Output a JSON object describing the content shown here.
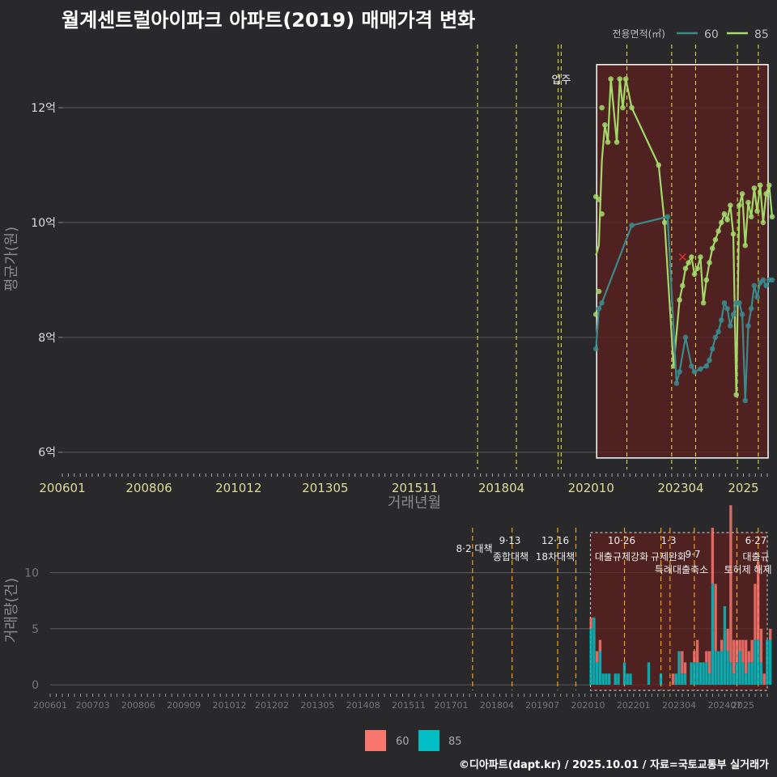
{
  "title": "월계센트럴아이파크 아파트(2019) 매매가격 변화",
  "footer": "©디아파트(dapt.kr) / 2025.10.01 / 자료=국토교통부 실거래가",
  "colors": {
    "background": "#29292b",
    "series_60_line": "#3a8a8c",
    "series_85_line": "#a3d96a",
    "bar_60": "#f8766d",
    "bar_85": "#00bfc4",
    "highlight_fill": "#5c1f1f",
    "event_line": "#e8e84a",
    "event_line_bottom": "#f0a020",
    "grid": "#5a5a5a",
    "text": "#dddddd",
    "axis_title": "#8a8a8a"
  },
  "legend_top": {
    "title": "전용면적(㎡)",
    "items": [
      "60",
      "85"
    ]
  },
  "legend_bottom": {
    "items": [
      "60",
      "85"
    ]
  },
  "chart_data": [
    {
      "type": "line",
      "title": "월계센트럴아이파크 아파트(2019) 매매가격 변화",
      "xlabel": "거래년월",
      "ylabel": "평균가(원)",
      "x_ticks": [
        "200601",
        "200806",
        "201012",
        "201305",
        "201511",
        "201804",
        "202010",
        "202304",
        "2025"
      ],
      "y_ticks": [
        "6억",
        "8억",
        "10억",
        "12억"
      ],
      "ylim": [
        5.7,
        13.1
      ],
      "y_unit": "억",
      "grid": true,
      "legend_position": "top-right",
      "highlight_period": [
        "2020-10",
        "2025-09"
      ],
      "event_lines": [
        "2017-08",
        "2018-09",
        "2019-11",
        "2019-12",
        "2021-10",
        "2023-01",
        "2023-09",
        "2024-11",
        "2025-06"
      ],
      "annotations": [
        {
          "text": "입주",
          "date": "2019-12"
        }
      ],
      "series": [
        {
          "name": "85",
          "points": [
            [
              "2020-10",
              8.4
            ],
            [
              "2020-10",
              10.45
            ],
            [
              "2020-11",
              10.4
            ],
            [
              "2020-11",
              8.8
            ],
            [
              "2020-12",
              12.0
            ],
            [
              "2020-12",
              10.15
            ],
            [
              "2021-01",
              11.7
            ],
            [
              "2021-02",
              11.4
            ],
            [
              "2021-03",
              12.5
            ],
            [
              "2021-05",
              11.4
            ],
            [
              "2021-06",
              12.5
            ],
            [
              "2021-07",
              12.0
            ],
            [
              "2021-08",
              12.5
            ],
            [
              "2021-10",
              12.0
            ],
            [
              "2022-07",
              11.0
            ],
            [
              "2022-09",
              10.0
            ],
            [
              "2022-12",
              7.5
            ],
            [
              "2023-02",
              8.65
            ],
            [
              "2023-03",
              8.9
            ],
            [
              "2023-04",
              9.2
            ],
            [
              "2023-05",
              9.3
            ],
            [
              "2023-06",
              9.4
            ],
            [
              "2023-07",
              9.1
            ],
            [
              "2023-08",
              9.2
            ],
            [
              "2023-09",
              9.4
            ],
            [
              "2023-10",
              8.6
            ],
            [
              "2023-11",
              9.0
            ],
            [
              "2023-12",
              9.3
            ],
            [
              "2024-01",
              9.55
            ],
            [
              "2024-02",
              9.7
            ],
            [
              "2024-03",
              9.85
            ],
            [
              "2024-04",
              10.0
            ],
            [
              "2024-05",
              10.15
            ],
            [
              "2024-06",
              10.05
            ],
            [
              "2024-07",
              10.3
            ],
            [
              "2024-08",
              9.8
            ],
            [
              "2024-09",
              7.0
            ],
            [
              "2024-10",
              10.3
            ],
            [
              "2024-11",
              10.5
            ],
            [
              "2024-12",
              9.6
            ],
            [
              "2025-01",
              10.35
            ],
            [
              "2025-02",
              10.1
            ],
            [
              "2025-03",
              10.6
            ],
            [
              "2025-04",
              10.2
            ],
            [
              "2025-05",
              10.65
            ],
            [
              "2025-06",
              10.0
            ],
            [
              "2025-07",
              10.5
            ],
            [
              "2025-08",
              10.65
            ],
            [
              "2025-09",
              10.1
            ]
          ]
        },
        {
          "name": "60",
          "points": [
            [
              "2020-10",
              7.8
            ],
            [
              "2020-11",
              8.5
            ],
            [
              "2020-12",
              8.6
            ],
            [
              "2021-10",
              9.95
            ],
            [
              "2022-10",
              10.1
            ],
            [
              "2023-01",
              7.2
            ],
            [
              "2023-02",
              7.4
            ],
            [
              "2023-04",
              8.0
            ],
            [
              "2023-06",
              7.5
            ],
            [
              "2023-07",
              7.4
            ],
            [
              "2023-09",
              7.45
            ],
            [
              "2023-11",
              7.5
            ],
            [
              "2023-12",
              7.6
            ],
            [
              "2024-01",
              7.8
            ],
            [
              "2024-02",
              8.0
            ],
            [
              "2024-03",
              8.1
            ],
            [
              "2024-04",
              8.3
            ],
            [
              "2024-05",
              8.6
            ],
            [
              "2024-06",
              8.5
            ],
            [
              "2024-07",
              8.2
            ],
            [
              "2024-08",
              8.4
            ],
            [
              "2024-09",
              8.6
            ],
            [
              "2024-10",
              8.6
            ],
            [
              "2024-11",
              8.4
            ],
            [
              "2024-12",
              6.9
            ],
            [
              "2025-01",
              8.2
            ],
            [
              "2025-02",
              8.5
            ],
            [
              "2025-03",
              8.9
            ],
            [
              "2025-04",
              8.7
            ],
            [
              "2025-05",
              8.95
            ],
            [
              "2025-06",
              9.0
            ],
            [
              "2025-07",
              8.9
            ],
            [
              "2025-08",
              9.0
            ],
            [
              "2025-09",
              9.0
            ]
          ]
        }
      ],
      "markers": [
        {
          "label": "x",
          "date": "2023-03",
          "value": 9.4
        }
      ]
    },
    {
      "type": "bar",
      "xlabel": "",
      "ylabel": "거래량(건)",
      "x_ticks": [
        "200601",
        "200703",
        "200806",
        "200909",
        "201012",
        "201202",
        "201305",
        "201408",
        "201511",
        "201701",
        "201804",
        "201907",
        "202010",
        "202201",
        "202304",
        "202407",
        "2025"
      ],
      "y_ticks": [
        "0",
        "5",
        "10"
      ],
      "ylim": [
        -0.5,
        14
      ],
      "grid": true,
      "legend_position": "bottom",
      "highlight_period": [
        "2020-10",
        "2025-09"
      ],
      "event_lines": [
        "2017-08",
        "2018-09",
        "2019-12",
        "2020-06",
        "2021-10",
        "2022-10",
        "2023-01",
        "2023-09",
        "2024-11",
        "2025-06"
      ],
      "annotations": [
        {
          "text": "8·2 대책",
          "date": "2017-08"
        },
        {
          "text": "9·13",
          "date": "2018-09"
        },
        {
          "text": "종합대책",
          "date": "2018-09"
        },
        {
          "text": "12·16",
          "date": "2019-12"
        },
        {
          "text": "18차대책",
          "date": "2019-12"
        },
        {
          "text": "10·26",
          "date": "2021-10"
        },
        {
          "text": "대출규제강화",
          "date": "2021-10"
        },
        {
          "text": "1·3",
          "date": "2023-01"
        },
        {
          "text": "규제완화",
          "date": "2023-01"
        },
        {
          "text": "9·7",
          "date": "2023-09"
        },
        {
          "text": "특례대출축소",
          "date": "2023-09"
        },
        {
          "text": "토허제 해제",
          "date": "2024-11"
        },
        {
          "text": "6·27",
          "date": "2025-06"
        },
        {
          "text": "대출규",
          "date": "2025-06"
        }
      ],
      "months": [
        "2020-10",
        "2020-11",
        "2020-12",
        "2021-01",
        "2021-02",
        "2021-03",
        "2021-04",
        "2021-05",
        "2021-06",
        "2021-07",
        "2021-08",
        "2021-09",
        "2021-10",
        "2021-11",
        "2021-12",
        "2022-01",
        "2022-02",
        "2022-03",
        "2022-04",
        "2022-05",
        "2022-06",
        "2022-07",
        "2022-08",
        "2022-09",
        "2022-10",
        "2022-11",
        "2022-12",
        "2023-01",
        "2023-02",
        "2023-03",
        "2023-04",
        "2023-05",
        "2023-06",
        "2023-07",
        "2023-08",
        "2023-09",
        "2023-10",
        "2023-11",
        "2023-12",
        "2024-01",
        "2024-02",
        "2024-03",
        "2024-04",
        "2024-05",
        "2024-06",
        "2024-07",
        "2024-08",
        "2024-09",
        "2024-10",
        "2024-11",
        "2024-12",
        "2025-01",
        "2025-02",
        "2025-03",
        "2025-04",
        "2025-05",
        "2025-06",
        "2025-07",
        "2025-08",
        "2025-09"
      ],
      "series": [
        {
          "name": "60",
          "values": [
            1,
            0,
            1,
            1,
            0,
            0,
            0,
            0,
            0,
            0,
            0,
            0,
            0,
            0,
            0,
            0,
            0,
            0,
            0,
            0,
            0,
            0,
            0,
            0,
            0,
            0,
            0,
            1,
            0,
            0,
            2,
            1,
            0,
            0,
            1,
            2,
            0,
            0,
            1,
            2,
            5,
            6,
            0,
            1,
            0,
            2,
            14,
            3,
            2,
            1,
            2,
            3,
            1,
            2,
            5,
            7,
            3,
            1,
            0,
            1
          ]
        },
        {
          "name": "85",
          "values": [
            5,
            6,
            2,
            3,
            1,
            1,
            1,
            0,
            1,
            1,
            0,
            2,
            1,
            1,
            0,
            0,
            0,
            0,
            0,
            2,
            0,
            0,
            0,
            1,
            0,
            0,
            0,
            0,
            1,
            3,
            1,
            1,
            0,
            2,
            2,
            2,
            2,
            2,
            2,
            1,
            9,
            3,
            3,
            3,
            7,
            3,
            2,
            1,
            2,
            3,
            2,
            1,
            2,
            2,
            4,
            4,
            2,
            0,
            4,
            4
          ]
        }
      ]
    }
  ]
}
